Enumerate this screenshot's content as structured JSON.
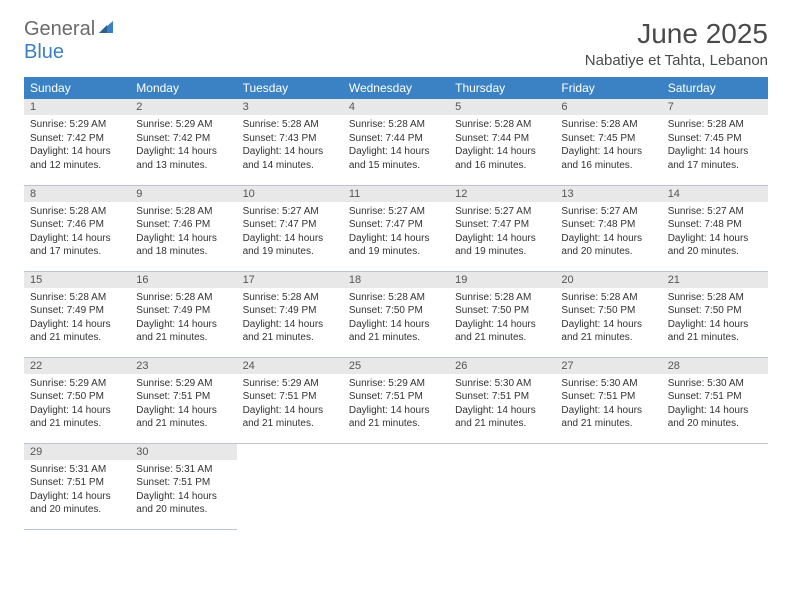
{
  "brand": {
    "text1": "General",
    "text2": "Blue",
    "text1_color": "#6b6b6b",
    "text2_color": "#3b7fc4",
    "icon_fill": "#3b7fc4"
  },
  "title": "June 2025",
  "location": "Nabatiye et Tahta, Lebanon",
  "colors": {
    "header_bg": "#3b82c4",
    "header_text": "#ffffff",
    "daynum_bg": "#e8e8e8",
    "daynum_text": "#555555",
    "cell_border": "#b8c5d6",
    "body_text": "#333333",
    "title_text": "#4a4a4a"
  },
  "day_headers": [
    "Sunday",
    "Monday",
    "Tuesday",
    "Wednesday",
    "Thursday",
    "Friday",
    "Saturday"
  ],
  "weeks": [
    [
      {
        "num": "1",
        "sunrise": "5:29 AM",
        "sunset": "7:42 PM",
        "daylight": "14 hours and 12 minutes."
      },
      {
        "num": "2",
        "sunrise": "5:29 AM",
        "sunset": "7:42 PM",
        "daylight": "14 hours and 13 minutes."
      },
      {
        "num": "3",
        "sunrise": "5:28 AM",
        "sunset": "7:43 PM",
        "daylight": "14 hours and 14 minutes."
      },
      {
        "num": "4",
        "sunrise": "5:28 AM",
        "sunset": "7:44 PM",
        "daylight": "14 hours and 15 minutes."
      },
      {
        "num": "5",
        "sunrise": "5:28 AM",
        "sunset": "7:44 PM",
        "daylight": "14 hours and 16 minutes."
      },
      {
        "num": "6",
        "sunrise": "5:28 AM",
        "sunset": "7:45 PM",
        "daylight": "14 hours and 16 minutes."
      },
      {
        "num": "7",
        "sunrise": "5:28 AM",
        "sunset": "7:45 PM",
        "daylight": "14 hours and 17 minutes."
      }
    ],
    [
      {
        "num": "8",
        "sunrise": "5:28 AM",
        "sunset": "7:46 PM",
        "daylight": "14 hours and 17 minutes."
      },
      {
        "num": "9",
        "sunrise": "5:28 AM",
        "sunset": "7:46 PM",
        "daylight": "14 hours and 18 minutes."
      },
      {
        "num": "10",
        "sunrise": "5:27 AM",
        "sunset": "7:47 PM",
        "daylight": "14 hours and 19 minutes."
      },
      {
        "num": "11",
        "sunrise": "5:27 AM",
        "sunset": "7:47 PM",
        "daylight": "14 hours and 19 minutes."
      },
      {
        "num": "12",
        "sunrise": "5:27 AM",
        "sunset": "7:47 PM",
        "daylight": "14 hours and 19 minutes."
      },
      {
        "num": "13",
        "sunrise": "5:27 AM",
        "sunset": "7:48 PM",
        "daylight": "14 hours and 20 minutes."
      },
      {
        "num": "14",
        "sunrise": "5:27 AM",
        "sunset": "7:48 PM",
        "daylight": "14 hours and 20 minutes."
      }
    ],
    [
      {
        "num": "15",
        "sunrise": "5:28 AM",
        "sunset": "7:49 PM",
        "daylight": "14 hours and 21 minutes."
      },
      {
        "num": "16",
        "sunrise": "5:28 AM",
        "sunset": "7:49 PM",
        "daylight": "14 hours and 21 minutes."
      },
      {
        "num": "17",
        "sunrise": "5:28 AM",
        "sunset": "7:49 PM",
        "daylight": "14 hours and 21 minutes."
      },
      {
        "num": "18",
        "sunrise": "5:28 AM",
        "sunset": "7:50 PM",
        "daylight": "14 hours and 21 minutes."
      },
      {
        "num": "19",
        "sunrise": "5:28 AM",
        "sunset": "7:50 PM",
        "daylight": "14 hours and 21 minutes."
      },
      {
        "num": "20",
        "sunrise": "5:28 AM",
        "sunset": "7:50 PM",
        "daylight": "14 hours and 21 minutes."
      },
      {
        "num": "21",
        "sunrise": "5:28 AM",
        "sunset": "7:50 PM",
        "daylight": "14 hours and 21 minutes."
      }
    ],
    [
      {
        "num": "22",
        "sunrise": "5:29 AM",
        "sunset": "7:50 PM",
        "daylight": "14 hours and 21 minutes."
      },
      {
        "num": "23",
        "sunrise": "5:29 AM",
        "sunset": "7:51 PM",
        "daylight": "14 hours and 21 minutes."
      },
      {
        "num": "24",
        "sunrise": "5:29 AM",
        "sunset": "7:51 PM",
        "daylight": "14 hours and 21 minutes."
      },
      {
        "num": "25",
        "sunrise": "5:29 AM",
        "sunset": "7:51 PM",
        "daylight": "14 hours and 21 minutes."
      },
      {
        "num": "26",
        "sunrise": "5:30 AM",
        "sunset": "7:51 PM",
        "daylight": "14 hours and 21 minutes."
      },
      {
        "num": "27",
        "sunrise": "5:30 AM",
        "sunset": "7:51 PM",
        "daylight": "14 hours and 21 minutes."
      },
      {
        "num": "28",
        "sunrise": "5:30 AM",
        "sunset": "7:51 PM",
        "daylight": "14 hours and 20 minutes."
      }
    ],
    [
      {
        "num": "29",
        "sunrise": "5:31 AM",
        "sunset": "7:51 PM",
        "daylight": "14 hours and 20 minutes."
      },
      {
        "num": "30",
        "sunrise": "5:31 AM",
        "sunset": "7:51 PM",
        "daylight": "14 hours and 20 minutes."
      },
      null,
      null,
      null,
      null,
      null
    ]
  ],
  "labels": {
    "sunrise_prefix": "Sunrise: ",
    "sunset_prefix": "Sunset: ",
    "daylight_prefix": "Daylight: "
  },
  "fonts": {
    "title_size": 28,
    "location_size": 15,
    "header_size": 12,
    "daynum_size": 11,
    "body_size": 10
  }
}
